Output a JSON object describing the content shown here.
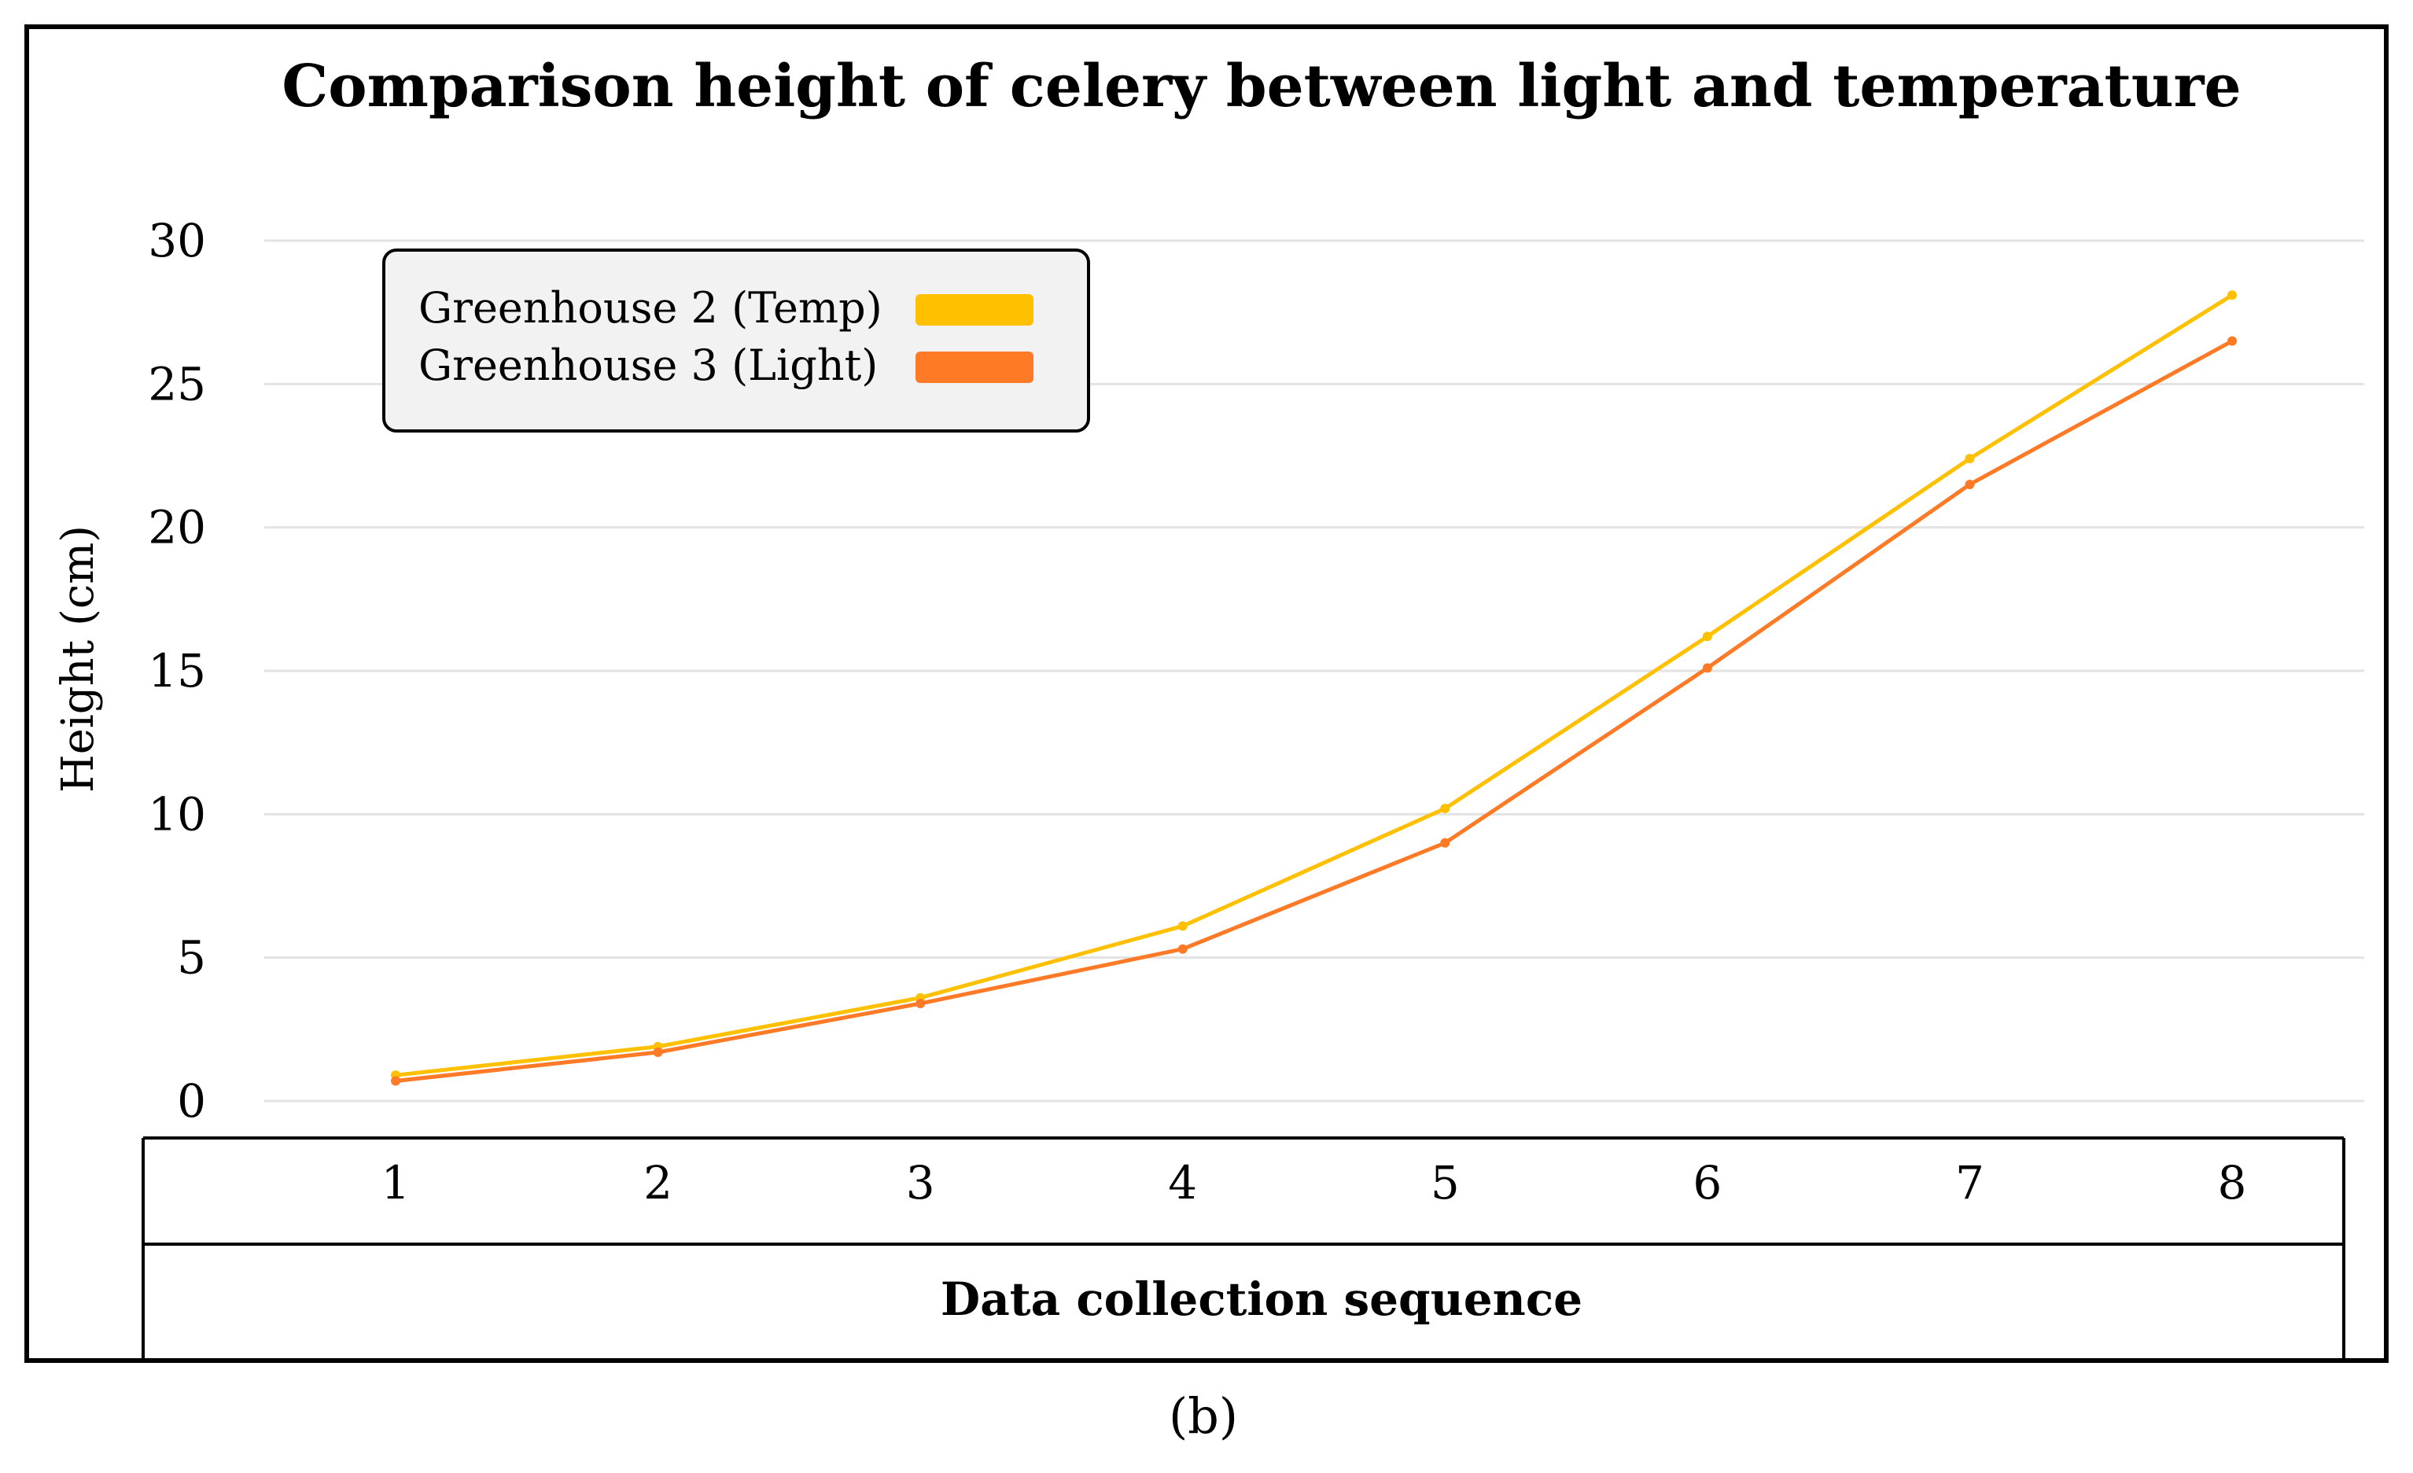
{
  "chart_data": {
    "type": "line",
    "title": "Comparison height of celery between light and temperature",
    "xlabel": "Data collection sequence",
    "ylabel": "Height (cm)",
    "x": [
      "1",
      "2",
      "3",
      "4",
      "5",
      "6",
      "7",
      "8"
    ],
    "ylim": [
      0,
      30
    ],
    "yticks": [
      "0",
      "5",
      "10",
      "15",
      "20",
      "25",
      "30"
    ],
    "grid": true,
    "legend_position": "top-left",
    "series": [
      {
        "name": "Greenhouse 2 (Temp)",
        "color": "#FFC000",
        "values": [
          0.9,
          1.9,
          3.6,
          6.1,
          10.2,
          16.2,
          22.4,
          28.1
        ]
      },
      {
        "name": "Greenhouse 3 (Light)",
        "color": "#FF7A26",
        "values": [
          0.7,
          1.7,
          3.4,
          5.3,
          9.0,
          15.1,
          21.5,
          26.5
        ]
      }
    ],
    "caption": "(b)"
  },
  "colors": {
    "grid": "#E3E3E3",
    "legend_background": "#F2F2F2",
    "frame": "#000000"
  }
}
